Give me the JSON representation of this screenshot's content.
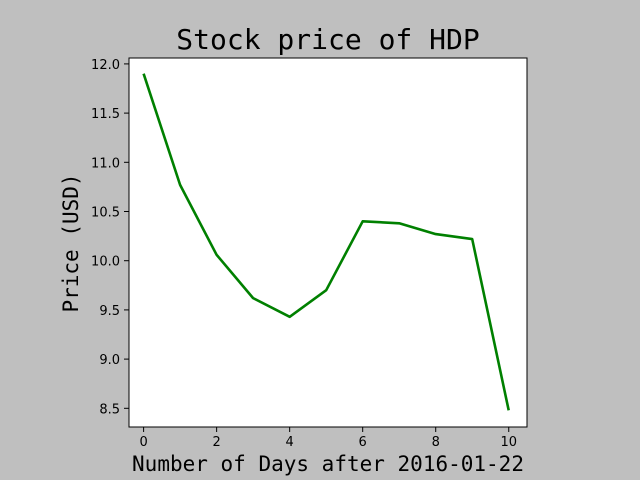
{
  "chart_data": {
    "type": "line",
    "title": "Stock price of HDP",
    "xlabel": "Number of Days after 2016-01-22",
    "ylabel": "Price (USD)",
    "xlim": [
      -0.4,
      10.5
    ],
    "ylim": [
      8.31,
      12.06
    ],
    "xticks": [
      0,
      2,
      4,
      6,
      8,
      10
    ],
    "yticks": [
      8.5,
      9.0,
      9.5,
      10.0,
      10.5,
      11.0,
      11.5,
      12.0
    ],
    "xtick_labels": [
      "0",
      "2",
      "4",
      "6",
      "8",
      "10"
    ],
    "ytick_labels": [
      "8.5",
      "9.0",
      "9.5",
      "10.0",
      "10.5",
      "11.0",
      "11.5",
      "12.0"
    ],
    "grid": false,
    "series": [
      {
        "color": "#008000",
        "x": [
          0,
          1,
          2,
          3,
          4,
          5,
          6,
          7,
          8,
          9,
          10
        ],
        "y": [
          11.9,
          10.77,
          10.06,
          9.62,
          9.43,
          9.7,
          10.4,
          10.38,
          10.27,
          10.22,
          8.48
        ]
      }
    ]
  }
}
